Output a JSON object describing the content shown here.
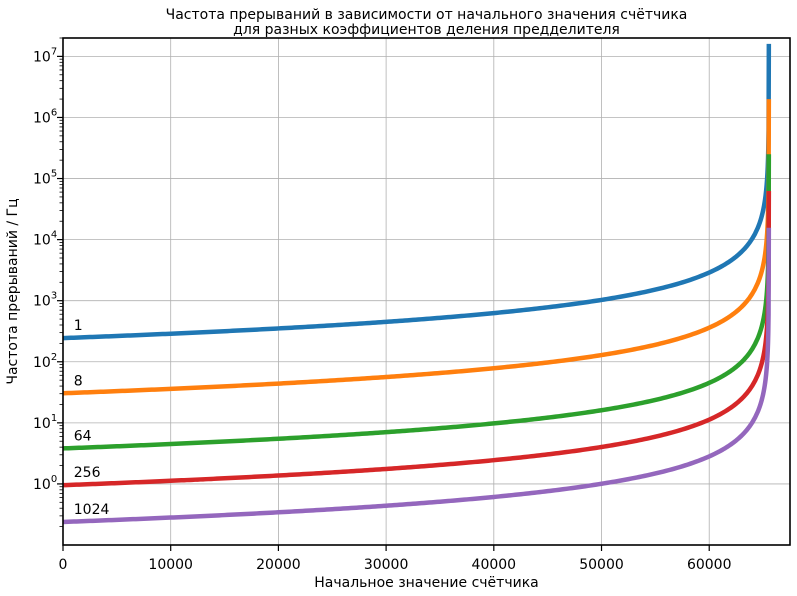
{
  "chart_data": {
    "type": "line",
    "title": [
      "Частота прерываний в зависимости от начального значения счётчика",
      "для разных коэффициентов деления предделителя"
    ],
    "xlabel": "Начальное значение счётчика",
    "ylabel": "Частота прерываний / Гц",
    "xlim": [
      0,
      67500
    ],
    "ylim": [
      0.1,
      20000000
    ],
    "yscale": "log",
    "grid": true,
    "x_ticks": [
      0,
      10000,
      20000,
      30000,
      40000,
      50000,
      60000
    ],
    "x_tick_labels": [
      "0",
      "10000",
      "20000",
      "30000",
      "40000",
      "50000",
      "60000"
    ],
    "y_tick_exponents": [
      0,
      1,
      2,
      3,
      4,
      5,
      6,
      7
    ],
    "y_tick_base": "10",
    "clock_hz": 16000000,
    "counter_max": 65535,
    "series": [
      {
        "name": "1",
        "prescaler": 1,
        "color": "#1f77b4"
      },
      {
        "name": "8",
        "prescaler": 8,
        "color": "#ff7f0e"
      },
      {
        "name": "64",
        "prescaler": 64,
        "color": "#2ca02c"
      },
      {
        "name": "256",
        "prescaler": 256,
        "color": "#d62728"
      },
      {
        "name": "1024",
        "prescaler": 1024,
        "color": "#9467bd"
      }
    ]
  }
}
